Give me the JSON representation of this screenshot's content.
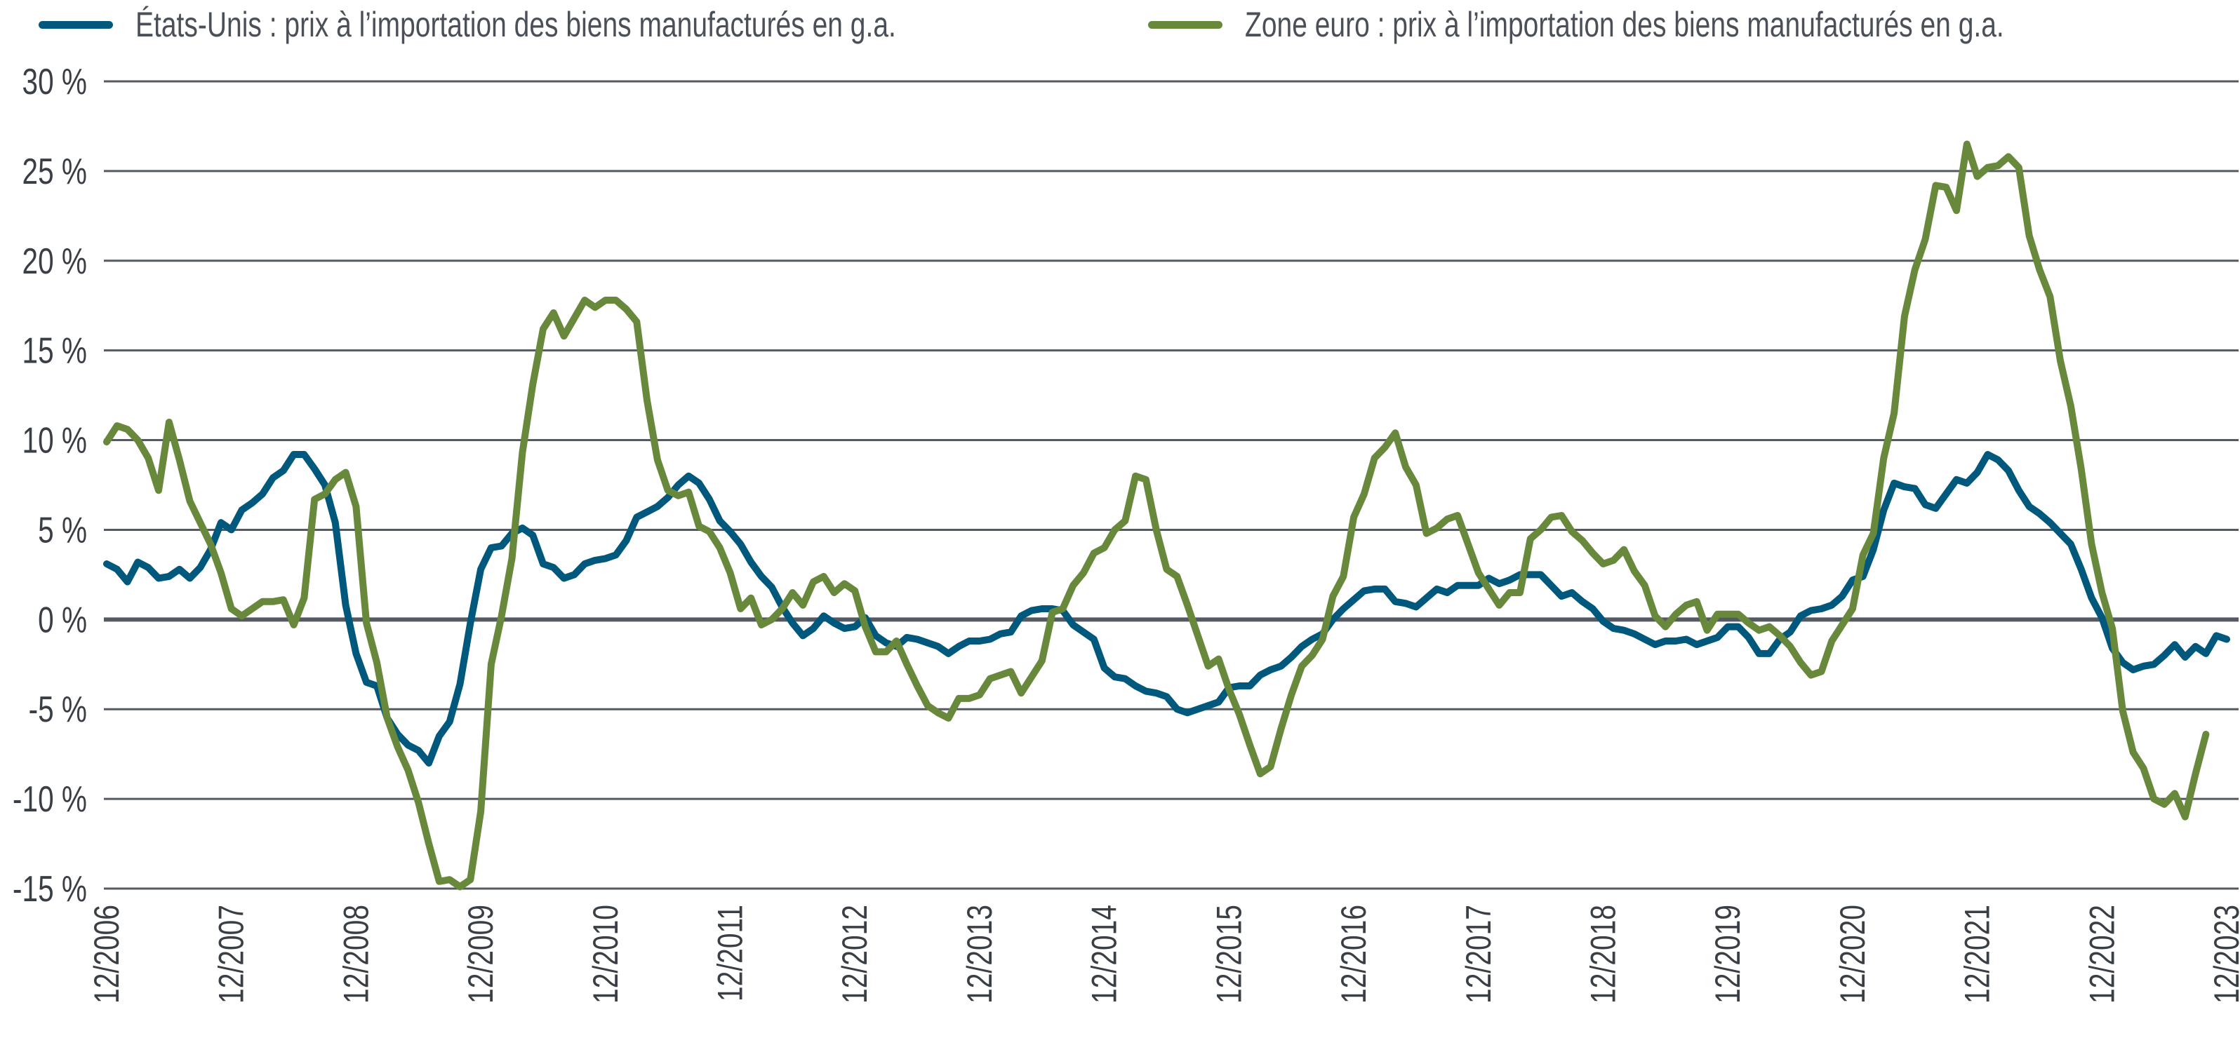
{
  "legend": [
    {
      "label": "États-Unis : prix à l’importation des biens manufacturés en g.a.",
      "color": "#00587c"
    },
    {
      "label": "Zone euro : prix à l’importation des biens manufacturés en g.a.",
      "color": "#68883c"
    }
  ],
  "chart_data": {
    "type": "line",
    "title": "",
    "xlabel": "",
    "ylabel": "",
    "ylim": [
      -15,
      30
    ],
    "y_ticks": [
      30,
      25,
      20,
      15,
      10,
      5,
      0,
      -5,
      -10,
      -15
    ],
    "y_tick_labels": [
      "30 %",
      "25 %",
      "20 %",
      "15 %",
      "10 %",
      "5 %",
      "0 %",
      "-5 %",
      "-10 %",
      "-15 %"
    ],
    "x_tick_labels": [
      "12/2006",
      "12/2007",
      "12/2008",
      "12/2009",
      "12/2010",
      "12/2011",
      "12/2012",
      "12/2013",
      "12/2014",
      "12/2015",
      "12/2016",
      "12/2017",
      "12/2018",
      "12/2019",
      "12/2020",
      "12/2021",
      "12/2022",
      "12/2023"
    ],
    "x_range": [
      "12/2006",
      "12/2023"
    ],
    "grid": "horizontal",
    "legend_position": "top",
    "series": [
      {
        "name": "États-Unis : prix à l’importation des biens manufacturés en g.a.",
        "color": "#00587c",
        "start": "12/2006",
        "frequency": "monthly",
        "values": [
          3.1,
          2.8,
          2.1,
          3.2,
          2.9,
          2.3,
          2.4,
          2.8,
          2.3,
          2.9,
          3.9,
          5.4,
          5.0,
          6.1,
          6.5,
          7.0,
          7.9,
          8.3,
          9.2,
          9.2,
          8.4,
          7.5,
          5.4,
          0.8,
          -1.9,
          -3.5,
          -3.7,
          -5.5,
          -6.4,
          -7.0,
          -7.3,
          -8.0,
          -6.5,
          -5.7,
          -3.6,
          -0.2,
          2.8,
          4.0,
          4.1,
          4.8,
          5.1,
          4.7,
          3.1,
          2.9,
          2.3,
          2.5,
          3.1,
          3.3,
          3.4,
          3.6,
          4.4,
          5.7,
          6.0,
          6.3,
          6.8,
          7.5,
          8.0,
          7.6,
          6.7,
          5.5,
          4.9,
          4.2,
          3.2,
          2.4,
          1.8,
          0.7,
          -0.2,
          -0.9,
          -0.5,
          0.2,
          -0.2,
          -0.5,
          -0.4,
          0.1,
          -0.9,
          -1.3,
          -1.5,
          -1.0,
          -1.1,
          -1.3,
          -1.5,
          -1.9,
          -1.5,
          -1.2,
          -1.2,
          -1.1,
          -0.8,
          -0.7,
          0.2,
          0.5,
          0.6,
          0.6,
          0.5,
          -0.3,
          -0.7,
          -1.1,
          -2.7,
          -3.2,
          -3.3,
          -3.7,
          -4.0,
          -4.1,
          -4.3,
          -5.0,
          -5.2,
          -5.0,
          -4.8,
          -4.6,
          -3.8,
          -3.7,
          -3.7,
          -3.1,
          -2.8,
          -2.6,
          -2.1,
          -1.5,
          -1.1,
          -0.8,
          0.0,
          0.6,
          1.1,
          1.6,
          1.7,
          1.7,
          1.0,
          0.9,
          0.7,
          1.2,
          1.7,
          1.5,
          1.9,
          1.9,
          1.9,
          2.3,
          2.0,
          2.2,
          2.5,
          2.5,
          2.5,
          1.9,
          1.3,
          1.5,
          1.0,
          0.6,
          -0.1,
          -0.5,
          -0.6,
          -0.8,
          -1.1,
          -1.4,
          -1.2,
          -1.2,
          -1.1,
          -1.4,
          -1.2,
          -1.0,
          -0.4,
          -0.4,
          -1.0,
          -1.9,
          -1.9,
          -1.1,
          -0.7,
          0.2,
          0.5,
          0.6,
          0.8,
          1.3,
          2.2,
          2.4,
          3.9,
          6.1,
          7.6,
          7.4,
          7.3,
          6.4,
          6.2,
          7.0,
          7.8,
          7.6,
          8.2,
          9.2,
          8.9,
          8.3,
          7.2,
          6.3,
          5.9,
          5.4,
          4.8,
          4.2,
          2.8,
          1.2,
          0.1,
          -1.6,
          -2.4,
          -2.8,
          -2.6,
          -2.5,
          -2.0,
          -1.4,
          -2.1,
          -1.5,
          -1.9,
          -0.9,
          -1.1
        ]
      },
      {
        "name": "Zone euro : prix à l’importation des biens manufacturés en g.a.",
        "color": "#68883c",
        "start": "12/2006",
        "frequency": "monthly",
        "values": [
          9.9,
          10.8,
          10.6,
          10.0,
          9.0,
          7.2,
          11.0,
          8.9,
          6.6,
          5.4,
          4.2,
          2.6,
          0.6,
          0.2,
          0.6,
          1.0,
          1.0,
          1.1,
          -0.3,
          1.2,
          6.7,
          7.0,
          7.8,
          8.2,
          6.3,
          -0.2,
          -2.4,
          -5.5,
          -7.1,
          -8.4,
          -10.2,
          -12.5,
          -14.6,
          -14.5,
          -14.9,
          -14.5,
          -10.7,
          -2.5,
          0.2,
          3.4,
          9.3,
          13.1,
          16.2,
          17.1,
          15.8,
          16.8,
          17.8,
          17.4,
          17.8,
          17.8,
          17.3,
          16.6,
          12.2,
          8.9,
          7.2,
          6.9,
          7.1,
          5.2,
          4.9,
          4.0,
          2.6,
          0.6,
          1.2,
          -0.3,
          0.0,
          0.6,
          1.5,
          0.8,
          2.1,
          2.4,
          1.5,
          2.0,
          1.6,
          -0.4,
          -1.8,
          -1.8,
          -1.2,
          -2.5,
          -3.7,
          -4.8,
          -5.2,
          -5.5,
          -4.4,
          -4.4,
          -4.2,
          -3.3,
          -3.1,
          -2.9,
          -4.1,
          -3.2,
          -2.3,
          0.4,
          0.6,
          1.9,
          2.6,
          3.7,
          4.0,
          5.0,
          5.5,
          8.0,
          7.8,
          5.0,
          2.8,
          2.4,
          0.8,
          -0.9,
          -2.6,
          -2.2,
          -3.9,
          -5.3,
          -7.0,
          -8.6,
          -8.2,
          -6.1,
          -4.2,
          -2.6,
          -2.0,
          -1.1,
          1.3,
          2.4,
          5.7,
          7.0,
          9.0,
          9.6,
          10.4,
          8.5,
          7.5,
          4.8,
          5.1,
          5.6,
          5.8,
          4.2,
          2.6,
          1.7,
          0.8,
          1.5,
          1.5,
          4.5,
          5.0,
          5.7,
          5.8,
          4.9,
          4.4,
          3.7,
          3.1,
          3.3,
          3.9,
          2.7,
          1.9,
          0.2,
          -0.4,
          0.3,
          0.8,
          1.0,
          -0.6,
          0.3,
          0.3,
          0.3,
          -0.2,
          -0.6,
          -0.4,
          -0.9,
          -1.5,
          -2.4,
          -3.1,
          -2.9,
          -1.2,
          -0.3,
          0.6,
          3.6,
          4.8,
          9.0,
          11.5,
          16.9,
          19.5,
          21.2,
          24.2,
          24.1,
          22.8,
          26.5,
          24.7,
          25.2,
          25.3,
          25.8,
          25.2,
          21.4,
          19.5,
          18.0,
          14.4,
          11.9,
          8.4,
          4.2,
          1.5,
          -0.5,
          -5.1,
          -7.4,
          -8.3,
          -10.0,
          -10.3,
          -9.7,
          -11.0,
          -8.6,
          -6.4
        ]
      }
    ]
  }
}
